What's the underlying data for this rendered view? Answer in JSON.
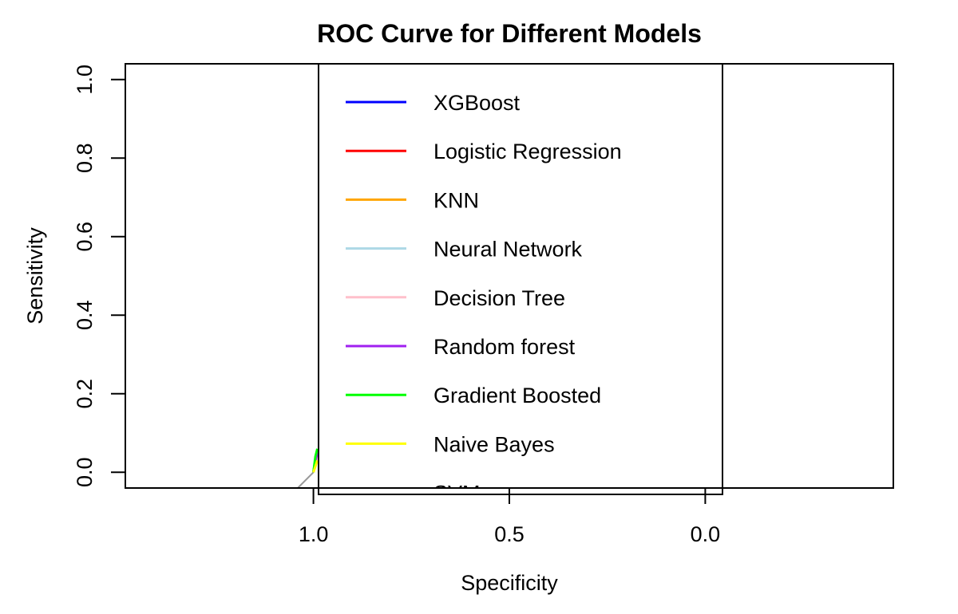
{
  "chart_data": {
    "type": "line",
    "title": "ROC Curve for Different Models",
    "xlabel": "Specificity",
    "ylabel": "Sensitivity",
    "x_reversed": true,
    "x_ticks": [
      "1.0",
      "0.5",
      "0.0"
    ],
    "y_ticks": [
      "0.0",
      "0.2",
      "0.4",
      "0.6",
      "0.8",
      "1.0"
    ],
    "xlim": [
      1.48,
      -0.48
    ],
    "ylim": [
      -0.04,
      1.04
    ],
    "grid": false,
    "legend": {
      "placement": "top-center",
      "overflow_clipped": true,
      "clipped_entry_visible_text": "SVM"
    },
    "reference_line": {
      "color": "#999999",
      "x": [
        1.04,
        1.0
      ],
      "y": [
        -0.04,
        0.0
      ]
    },
    "series": [
      {
        "name": "XGBoost",
        "color": "#0000ff",
        "x": [
          1.0,
          0.995,
          0.99
        ],
        "y": [
          0.0,
          0.03,
          0.05
        ]
      },
      {
        "name": "Logistic Regression",
        "color": "#ff0000",
        "x": [
          1.0,
          0.995,
          0.99
        ],
        "y": [
          0.0,
          0.03,
          0.05
        ]
      },
      {
        "name": "KNN",
        "color": "#ffa500",
        "x": [
          1.0,
          0.995,
          0.99
        ],
        "y": [
          0.0,
          0.02,
          0.04
        ]
      },
      {
        "name": "Neural Network",
        "color": "#add8e6",
        "x": [
          1.0,
          0.995,
          0.99
        ],
        "y": [
          0.0,
          0.03,
          0.05
        ]
      },
      {
        "name": "Decision Tree",
        "color": "#ffc0cb",
        "x": [
          1.0,
          0.995,
          0.99
        ],
        "y": [
          0.0,
          0.02,
          0.04
        ]
      },
      {
        "name": "Random forest",
        "color": "#a020f0",
        "x": [
          1.0,
          0.995,
          0.99
        ],
        "y": [
          0.0,
          0.03,
          0.05
        ]
      },
      {
        "name": "Gradient Boosted",
        "color": "#00ff00",
        "x": [
          1.0,
          0.995,
          0.99
        ],
        "y": [
          0.0,
          0.04,
          0.06
        ]
      },
      {
        "name": "Naive Bayes",
        "color": "#ffff00",
        "x": [
          1.0,
          0.995,
          0.99
        ],
        "y": [
          0.0,
          0.015,
          0.03
        ]
      },
      {
        "name": "SVM",
        "color": "#000000",
        "x": [],
        "y": []
      }
    ]
  }
}
